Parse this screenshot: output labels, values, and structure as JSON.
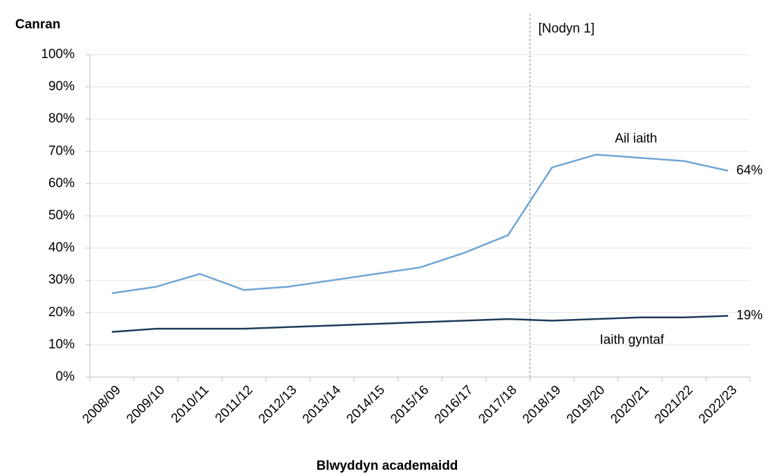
{
  "chart_data": {
    "type": "line",
    "y_axis_title": "Canran",
    "x_axis_title": "Blwyddyn academaidd",
    "annotation": "[Nodyn 1]",
    "categories": [
      "2008/09",
      "2009/10",
      "2010/11",
      "2011/12",
      "2012/13",
      "2013/14",
      "2014/15",
      "2015/16",
      "2016/17",
      "2017/18",
      "2018/19",
      "2019/20",
      "2020/21",
      "2021/22",
      "2022/23"
    ],
    "series": [
      {
        "name": "Ail iaith",
        "color": "#6fa5d3",
        "values": [
          26,
          28,
          32,
          27,
          28,
          30,
          32,
          34,
          38.5,
          44,
          65,
          69,
          68,
          67,
          64
        ],
        "value_labels": [
          null,
          null,
          null,
          null,
          null,
          null,
          null,
          null,
          null,
          null,
          null,
          null,
          null,
          null,
          "64%"
        ]
      },
      {
        "name": "Iaith gyntaf",
        "color": "#1c3a5c",
        "values": [
          14,
          15,
          15,
          15,
          15.5,
          16,
          16.5,
          17,
          17.5,
          18,
          17.5,
          18,
          18.5,
          18.5,
          19
        ],
        "value_labels": [
          null,
          null,
          null,
          null,
          null,
          null,
          null,
          null,
          null,
          null,
          null,
          null,
          null,
          null,
          "19%"
        ]
      }
    ],
    "ylim": [
      0,
      100
    ],
    "yticks": [
      {
        "value": 0,
        "label": "0%"
      },
      {
        "value": 10,
        "label": "10%"
      },
      {
        "value": 20,
        "label": "20%"
      },
      {
        "value": 30,
        "label": "30%"
      },
      {
        "value": 40,
        "label": "40%"
      },
      {
        "value": 50,
        "label": "50%"
      },
      {
        "value": 60,
        "label": "60%"
      },
      {
        "value": 70,
        "label": "70%"
      },
      {
        "value": 80,
        "label": "80%"
      },
      {
        "value": 90,
        "label": "90%"
      },
      {
        "value": 100,
        "label": "100%"
      }
    ],
    "grid": true
  }
}
